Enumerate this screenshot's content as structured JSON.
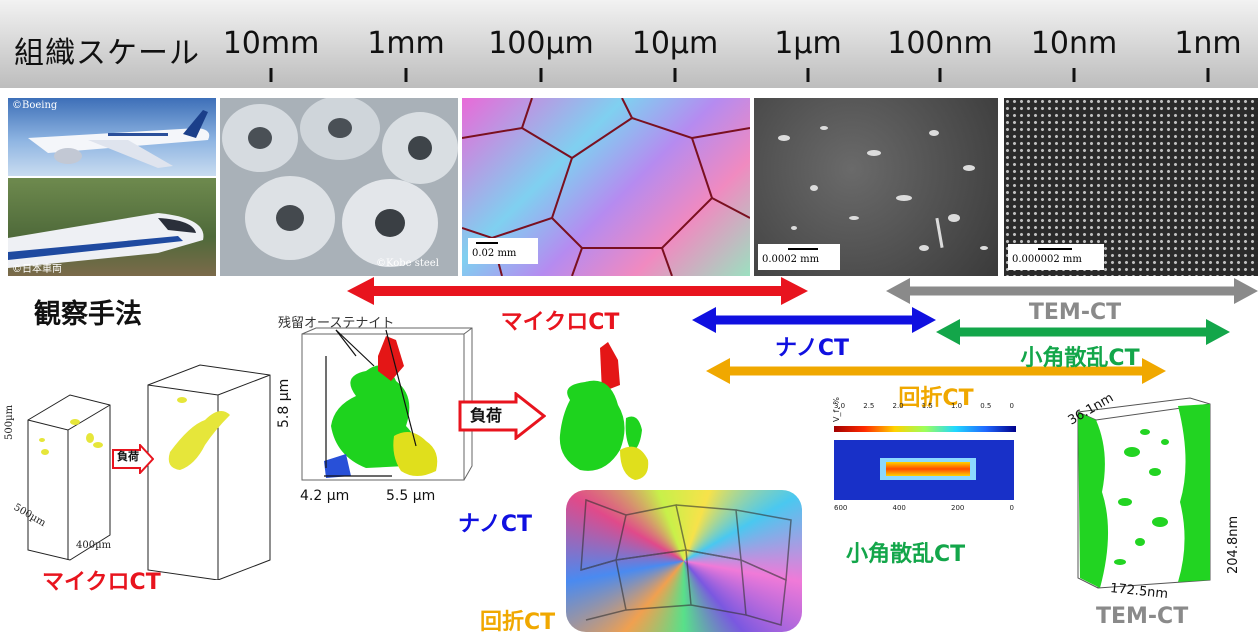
{
  "scale": {
    "title": "組織スケール",
    "ticks": [
      "10mm",
      "1mm",
      "100µm",
      "10µm",
      "1µm",
      "100nm",
      "10nm",
      "1nm"
    ]
  },
  "photos": {
    "credit_boeing": "©Boeing",
    "credit_train": "©日本車両",
    "credit_kobe": "©Kobe steel",
    "scale_ebsd": "0.02 mm",
    "scale_sem": "0.0002 mm",
    "scale_tem": "0.000002 mm"
  },
  "methods": {
    "heading": "観察手法",
    "ranges": [
      {
        "label": "マイクロCT",
        "color": "#e8141e"
      },
      {
        "label": "ナノCT",
        "color": "#1010e0"
      },
      {
        "label": "TEM-CT",
        "color": "#8a8a8a"
      },
      {
        "label": "小角散乱CT",
        "color": "#13a64a"
      },
      {
        "label": "回折CT",
        "color": "#f0a800"
      }
    ]
  },
  "examples": {
    "micro_dims": [
      "500µm",
      "500µm",
      "400µm"
    ],
    "load_small": "負荷",
    "load_big": "負荷",
    "retained_austenite": "残留オーステナイト",
    "nano_dims": [
      "5.8 µm",
      "4.2 µm",
      "5.5 µm"
    ],
    "saxs_axis_label": "V_f, %",
    "saxs_ticks": [
      "3.0",
      "2.5",
      "2.0",
      "1.5",
      "1.0",
      "0.5",
      "0"
    ],
    "saxs_y_ticks": [
      "600",
      "400",
      "200",
      "0"
    ],
    "tem_dims": [
      "36.1nm",
      "204.8nm",
      "172.5nm"
    ],
    "labels": {
      "micro": "マイクロCT",
      "nano": "ナノCT",
      "diffraction": "回折CT",
      "saxs": "小角散乱CT",
      "tem": "TEM-CT"
    }
  }
}
